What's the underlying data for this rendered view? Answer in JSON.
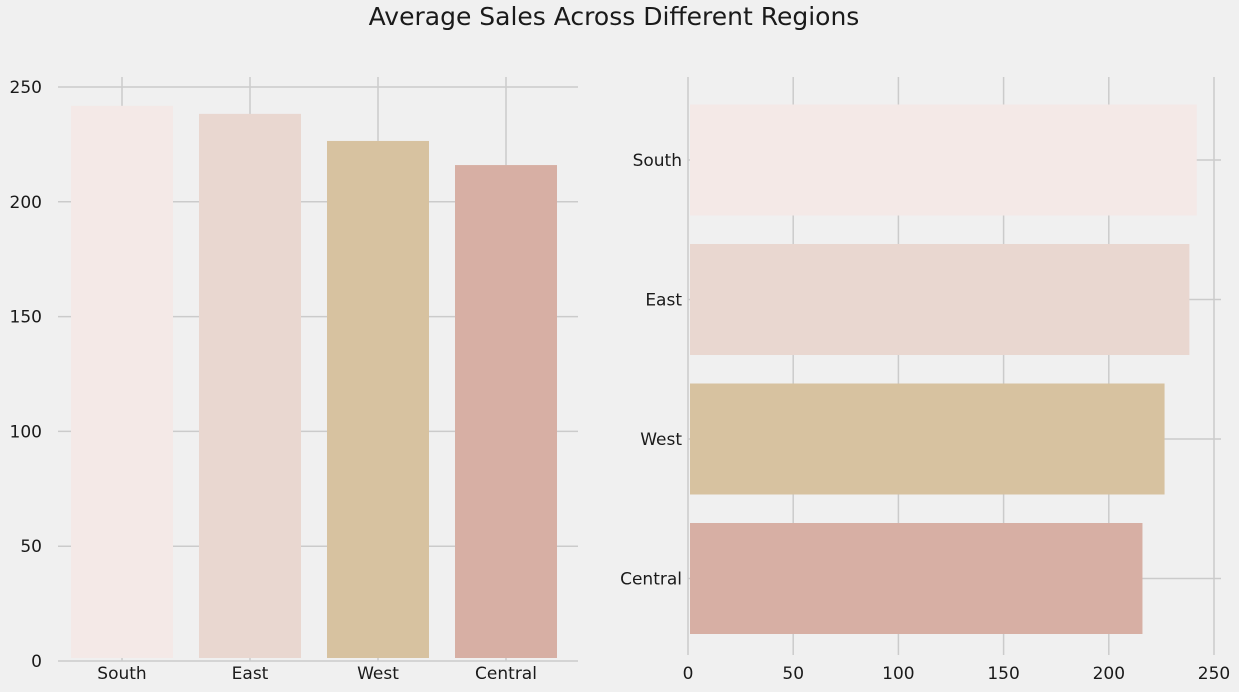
{
  "figure": {
    "title": "Average Sales Across Different Regions",
    "background": "#f0f0f0",
    "grid_color": "#cbcbcb"
  },
  "chart_data": [
    {
      "type": "bar",
      "orientation": "vertical",
      "categories": [
        "South",
        "East",
        "West",
        "Central"
      ],
      "values": [
        241.8,
        238.3,
        226.5,
        216.0
      ],
      "colors": [
        "#f4e9e7",
        "#e9d7d0",
        "#d7c2a0",
        "#d7afa4"
      ],
      "ylim": [
        0,
        250
      ],
      "yticks": [
        0,
        50,
        100,
        150,
        200,
        250
      ],
      "grid": true
    },
    {
      "type": "bar",
      "orientation": "horizontal",
      "categories": [
        "South",
        "East",
        "West",
        "Central"
      ],
      "values": [
        241.8,
        238.3,
        226.5,
        216.0
      ],
      "colors": [
        "#f4e9e7",
        "#e9d7d0",
        "#d7c2a0",
        "#d7afa4"
      ],
      "xlim": [
        0,
        250
      ],
      "xticks": [
        0,
        50,
        100,
        150,
        200,
        250
      ],
      "grid": true
    }
  ]
}
